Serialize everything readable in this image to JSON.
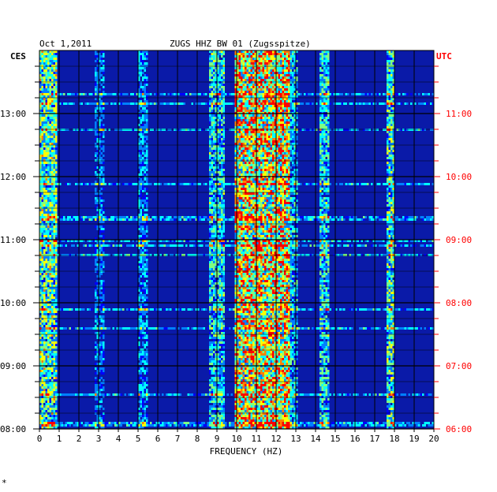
{
  "chart_data": {
    "type": "heatmap",
    "date": "Oct 1,2011",
    "title": "ZUGS HHZ BW 01 (Zugsspitze)",
    "xlabel": "FREQUENCY (HZ)",
    "left_timezone": "CES",
    "right_timezone": "UTC",
    "xlim": [
      0,
      20
    ],
    "x_ticks": [
      "0",
      "1",
      "2",
      "3",
      "4",
      "5",
      "6",
      "7",
      "8",
      "9",
      "10",
      "11",
      "12",
      "13",
      "14",
      "15",
      "16",
      "17",
      "18",
      "19",
      "20"
    ],
    "y_time_range_ces": [
      "08:00",
      "13:45"
    ],
    "left_ticks": [
      {
        "hour": 13,
        "label": "13:00"
      },
      {
        "hour": 12,
        "label": "12:00"
      },
      {
        "hour": 11,
        "label": "11:00"
      },
      {
        "hour": 10,
        "label": "10:00"
      },
      {
        "hour": 9,
        "label": "09:00"
      },
      {
        "hour": 8,
        "label": "08:00"
      }
    ],
    "right_ticks": [
      {
        "hour": 13,
        "label": "11:00"
      },
      {
        "hour": 12,
        "label": "10:00"
      },
      {
        "hour": 11,
        "label": "09:00"
      },
      {
        "hour": 10,
        "label": "08:00"
      },
      {
        "hour": 9,
        "label": "07:00"
      },
      {
        "hour": 8,
        "label": "06:00"
      }
    ],
    "intensity_bands_hz": [
      {
        "from": 0.0,
        "to": 0.8,
        "level": 0.55
      },
      {
        "from": 2.8,
        "to": 3.2,
        "level": 0.3
      },
      {
        "from": 5.0,
        "to": 5.4,
        "level": 0.35
      },
      {
        "from": 8.6,
        "to": 9.3,
        "level": 0.45
      },
      {
        "from": 9.9,
        "to": 12.6,
        "level": 0.75
      },
      {
        "from": 12.6,
        "to": 13.0,
        "level": 0.4
      },
      {
        "from": 14.2,
        "to": 14.6,
        "level": 0.45
      },
      {
        "from": 17.6,
        "to": 17.9,
        "level": 0.5
      }
    ],
    "grid": true,
    "colormap": [
      "#00008b",
      "#0000ff",
      "#0080ff",
      "#00ffff",
      "#80ff80",
      "#ffff00",
      "#ff8000",
      "#ff0000"
    ]
  },
  "colors": {
    "background": "#ffffff",
    "plot_base": "#0a1aa8",
    "grid": "#000000",
    "left_axis_text": "#000000",
    "right_axis_text": "#ff0000"
  },
  "footer_mark": "*"
}
